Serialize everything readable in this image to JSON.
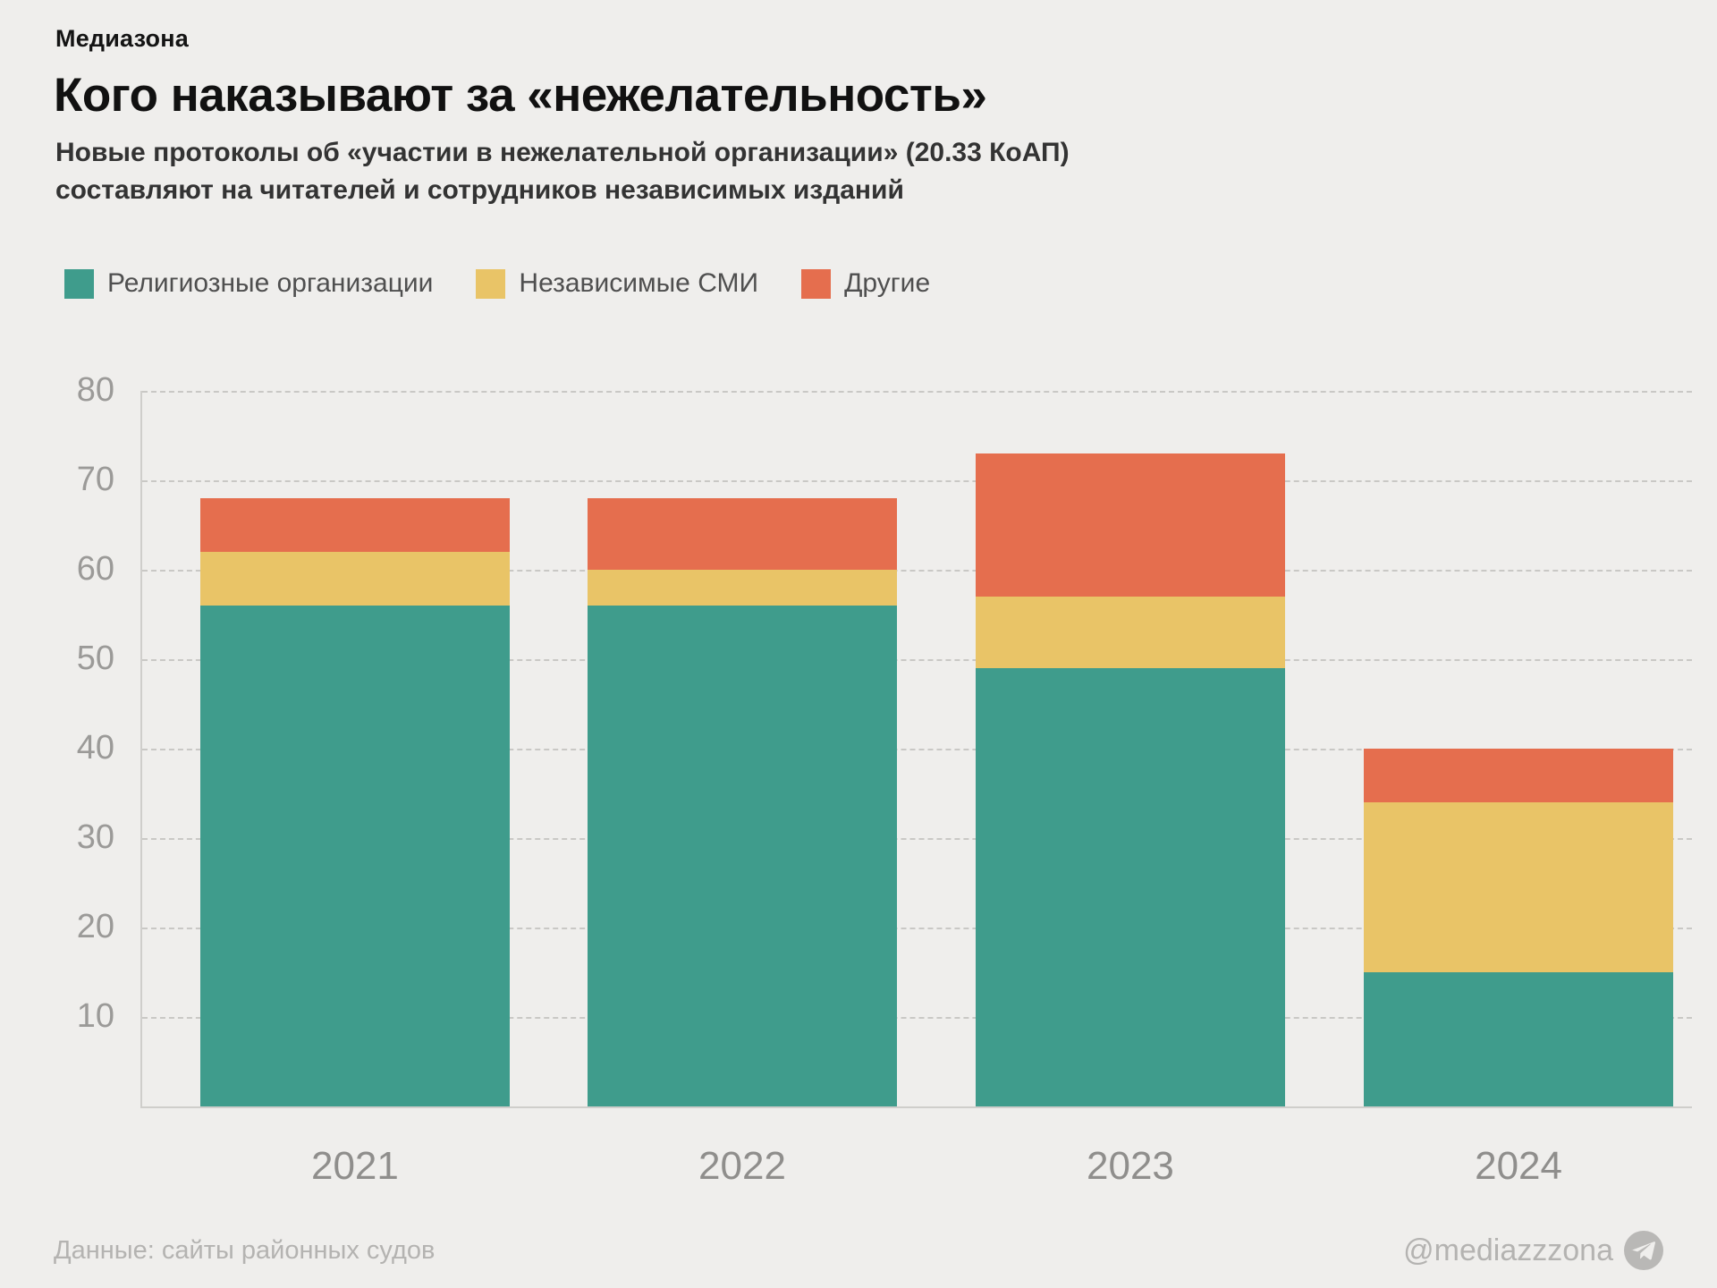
{
  "brand": "Медиазона",
  "title": "Кого наказывают за «нежелательность»",
  "subtitle_line1": "Новые протоколы об «участии в нежелательной организации» (20.33 КоАП)",
  "subtitle_line2": "составляют на читателей и сотрудников независимых изданий",
  "legend": {
    "items": [
      {
        "label": "Религиозные организации",
        "color": "#3f9c8c"
      },
      {
        "label": "Независимые СМИ",
        "color": "#e9c467"
      },
      {
        "label": "Другие",
        "color": "#e56e4e"
      }
    ]
  },
  "chart_data": {
    "type": "bar",
    "stacked": true,
    "categories": [
      "2021",
      "2022",
      "2023",
      "2024"
    ],
    "series": [
      {
        "name": "Религиозные организации",
        "color": "#3f9c8c",
        "values": [
          56,
          56,
          49,
          15
        ]
      },
      {
        "name": "Независимые СМИ",
        "color": "#e9c467",
        "values": [
          6,
          4,
          8,
          19
        ]
      },
      {
        "name": "Другие",
        "color": "#e56e4e",
        "values": [
          6,
          8,
          16,
          6
        ]
      }
    ],
    "totals": [
      68,
      68,
      73,
      40
    ],
    "title": "Кого наказывают за «нежелательность»",
    "xlabel": "",
    "ylabel": "",
    "ylim": [
      0,
      80
    ],
    "yticks": [
      10,
      20,
      30,
      40,
      50,
      60,
      70,
      80
    ],
    "grid": "horizontal-dashed",
    "legend_position": "top"
  },
  "colors": {
    "background": "#efeeec",
    "grid": "#c9c8c5",
    "axis": "#cfcecb",
    "tick_text": "#9b9a98",
    "category_text": "#8f8e8c",
    "footer_text": "#b4b3b1"
  },
  "footer": {
    "source": "Данные: сайты районных судов",
    "handle": "@mediazzzona",
    "icon": "telegram"
  }
}
